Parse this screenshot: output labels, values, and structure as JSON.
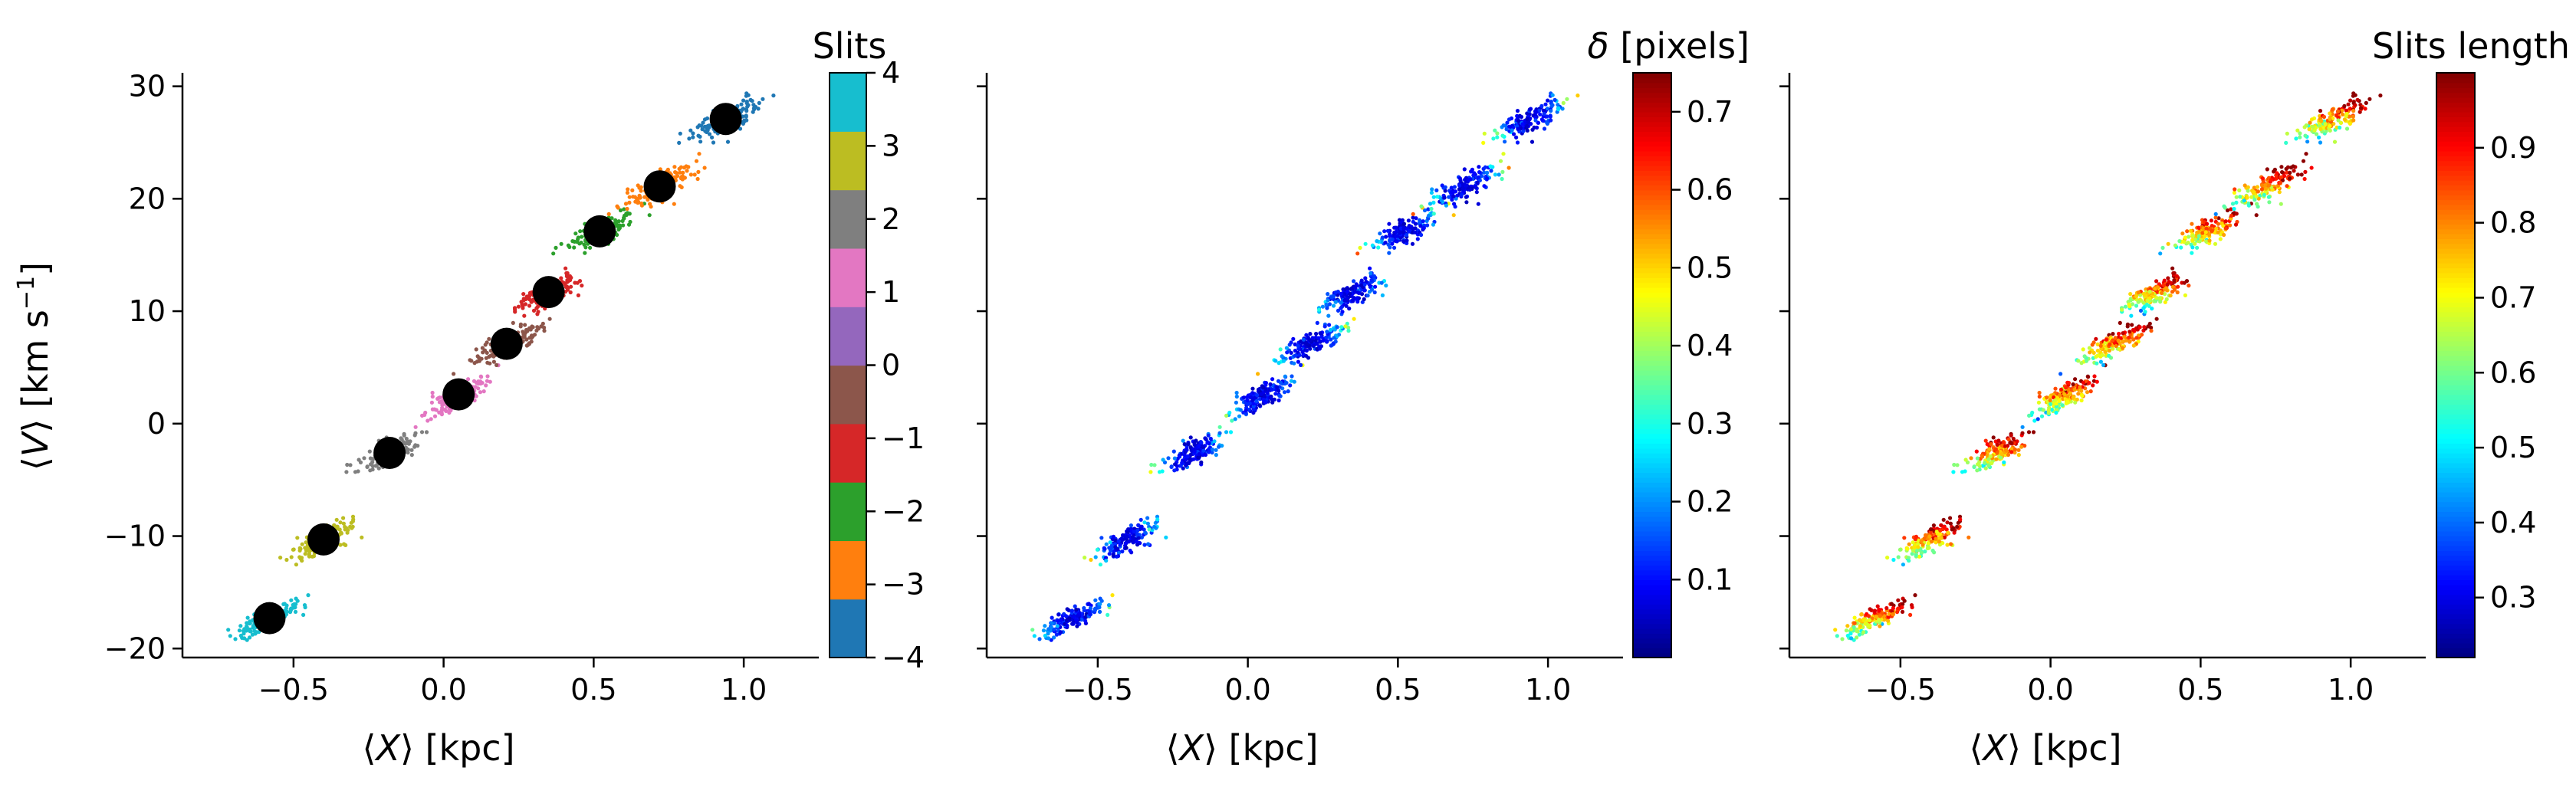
{
  "chart_data": [
    {
      "type": "scatter",
      "panel": "left",
      "xlabel": "⟨X⟩ [kpc]",
      "ylabel": "⟨V⟩ [km s⁻¹]",
      "xlim": [
        -0.87,
        1.25
      ],
      "ylim": [
        -20.8,
        31.2
      ],
      "xticks": [
        -0.5,
        0.0,
        0.5,
        1.0
      ],
      "xtick_labels": [
        "−0.5",
        "0.0",
        "0.5",
        "1.0"
      ],
      "yticks": [
        -20,
        -10,
        0,
        10,
        20,
        30
      ],
      "ytick_labels": [
        "−20",
        "−10",
        "0",
        "10",
        "20",
        "30"
      ],
      "colorbar": {
        "title": "Slits",
        "range": [
          -4,
          4
        ],
        "ticks": [
          -4,
          -3,
          -2,
          -1,
          0,
          1,
          2,
          3,
          4
        ],
        "tick_labels": [
          "−4",
          "−3",
          "−2",
          "−1",
          "0",
          "1",
          "2",
          "3",
          "4"
        ],
        "colors": [
          "#1f77b4",
          "#ff7f0e",
          "#2ca02c",
          "#d62728",
          "#8c564b",
          "#9467bd",
          "#e377c2",
          "#7f7f7f",
          "#bcbd22",
          "#17becf"
        ]
      },
      "clusters": [
        {
          "slit": 4,
          "color": "#17becf",
          "center_x": -0.58,
          "center_y": -17.3
        },
        {
          "slit": 3,
          "color": "#bcbd22",
          "center_x": -0.4,
          "center_y": -10.3
        },
        {
          "slit": 2,
          "color": "#7f7f7f",
          "center_x": -0.18,
          "center_y": -2.6
        },
        {
          "slit": 1,
          "color": "#e377c2",
          "center_x": 0.05,
          "center_y": 2.6
        },
        {
          "slit": 0,
          "color": "#8c564b",
          "center_x": 0.21,
          "center_y": 7.1
        },
        {
          "slit": -1,
          "color": "#d62728",
          "center_x": 0.35,
          "center_y": 11.7
        },
        {
          "slit": -2,
          "color": "#2ca02c",
          "center_x": 0.52,
          "center_y": 17.1
        },
        {
          "slit": -3,
          "color": "#ff7f0e",
          "center_x": 0.72,
          "center_y": 21.1
        },
        {
          "slit": -4,
          "color": "#1f77b4",
          "center_x": 0.94,
          "center_y": 27.1
        }
      ]
    },
    {
      "type": "scatter",
      "panel": "middle",
      "xlabel": "⟨X⟩ [kpc]",
      "xlim": [
        -0.87,
        1.25
      ],
      "ylim": [
        -20.8,
        31.2
      ],
      "xticks": [
        -0.5,
        0.0,
        0.5,
        1.0
      ],
      "xtick_labels": [
        "−0.5",
        "0.0",
        "0.5",
        "1.0"
      ],
      "colorbar": {
        "title": "δ [pixels]",
        "range": [
          0.0,
          0.75
        ],
        "ticks": [
          0.1,
          0.2,
          0.3,
          0.4,
          0.5,
          0.6,
          0.7
        ],
        "tick_labels": [
          "0.1",
          "0.2",
          "0.3",
          "0.4",
          "0.5",
          "0.6",
          "0.7"
        ],
        "colormap": "jet"
      }
    },
    {
      "type": "scatter",
      "panel": "right",
      "xlabel": "⟨X⟩ [kpc]",
      "xlim": [
        -0.87,
        1.25
      ],
      "ylim": [
        -20.8,
        31.2
      ],
      "xticks": [
        -0.5,
        0.0,
        0.5,
        1.0
      ],
      "xtick_labels": [
        "−0.5",
        "0.0",
        "0.5",
        "1.0"
      ],
      "colorbar": {
        "title": "Slits length",
        "range": [
          0.22,
          1.0
        ],
        "ticks": [
          0.3,
          0.4,
          0.5,
          0.6,
          0.7,
          0.8,
          0.9
        ],
        "tick_labels": [
          "0.3",
          "0.4",
          "0.5",
          "0.6",
          "0.7",
          "0.8",
          "0.9"
        ],
        "colormap": "jet"
      }
    }
  ]
}
